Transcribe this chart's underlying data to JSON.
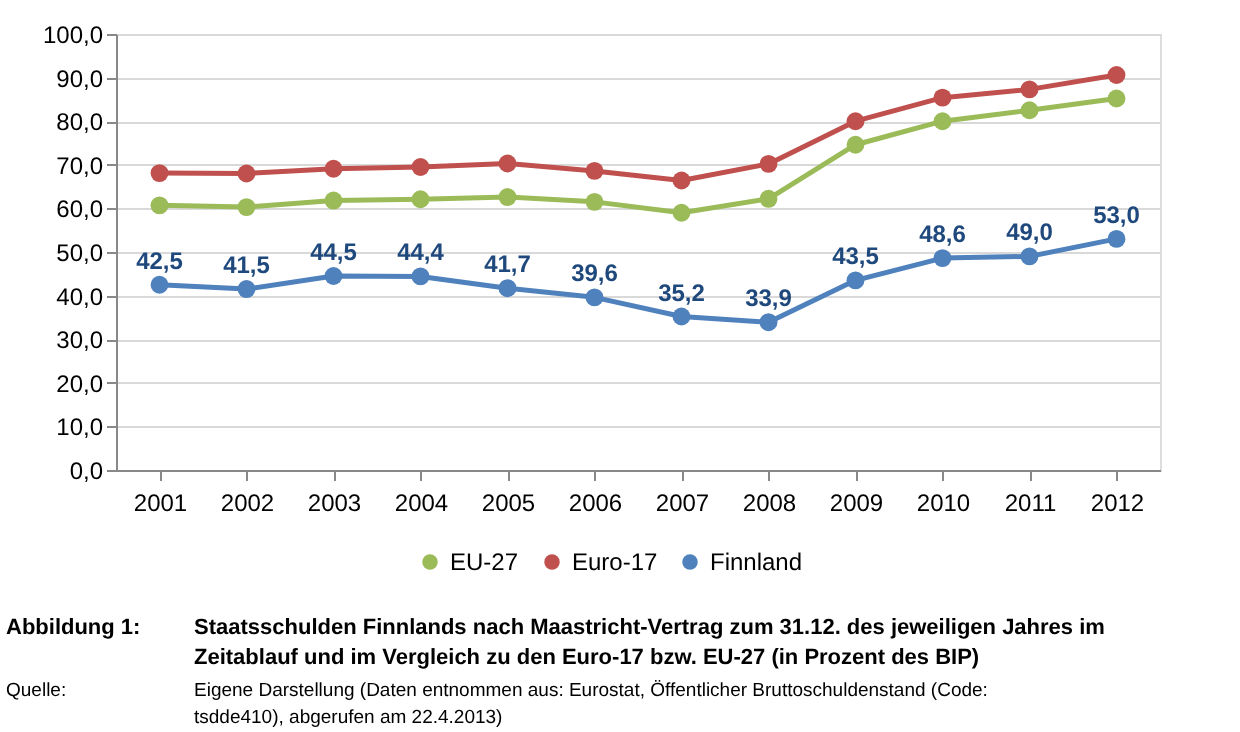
{
  "chart_data": {
    "type": "line",
    "title": "Staatsschulden Finnlands nach Maastricht-Vertrag zum 31.12. des jeweiligen Jahres im Zeitablauf und im Vergleich zu den Euro-17 bzw. EU-27 (in Prozent des BIP)",
    "annotations": [
      "Abbildung 1:",
      "Quelle:",
      "Eigene Darstellung (Daten entnommen aus: Eurostat, Öffentlicher Bruttoschuldenstand (Code: tsdde410), abgerufen am 22.4.2013)"
    ],
    "categories": [
      "2001",
      "2002",
      "2003",
      "2004",
      "2005",
      "2006",
      "2007",
      "2008",
      "2009",
      "2010",
      "2011",
      "2012"
    ],
    "series": [
      {
        "name": "EU-27",
        "color": "#9bbb59",
        "values": [
          60.7,
          60.3,
          61.8,
          62.1,
          62.6,
          61.5,
          59.0,
          62.2,
          74.6,
          80.0,
          82.5,
          85.2
        ]
      },
      {
        "name": "Euro-17",
        "color": "#c0504d",
        "values": [
          68.1,
          68.0,
          69.1,
          69.5,
          70.3,
          68.6,
          66.4,
          70.2,
          80.0,
          85.4,
          87.3,
          90.6
        ]
      },
      {
        "name": "Finnland",
        "color": "#4f81bd",
        "values": [
          42.5,
          41.5,
          44.5,
          44.4,
          41.7,
          39.6,
          35.2,
          33.9,
          43.5,
          48.6,
          49.0,
          53.0
        ],
        "value_labels": [
          "42,5",
          "41,5",
          "44,5",
          "44,4",
          "41,7",
          "39,6",
          "35,2",
          "33,9",
          "43,5",
          "48,6",
          "49,0",
          "53,0"
        ]
      }
    ],
    "ylim": [
      0,
      100
    ],
    "yticks": [
      {
        "value": 0,
        "label": "0,0"
      },
      {
        "value": 10,
        "label": "10,0"
      },
      {
        "value": 20,
        "label": "20,0"
      },
      {
        "value": 30,
        "label": "30,0"
      },
      {
        "value": 40,
        "label": "40,0"
      },
      {
        "value": 50,
        "label": "50,0"
      },
      {
        "value": 60,
        "label": "60,0"
      },
      {
        "value": 70,
        "label": "70,0"
      },
      {
        "value": 80,
        "label": "80,0"
      },
      {
        "value": 90,
        "label": "90,0"
      },
      {
        "value": 100,
        "label": "100,0"
      }
    ],
    "grid": "y",
    "legend": "bottom",
    "marker": "circle",
    "line_style": "solid"
  }
}
